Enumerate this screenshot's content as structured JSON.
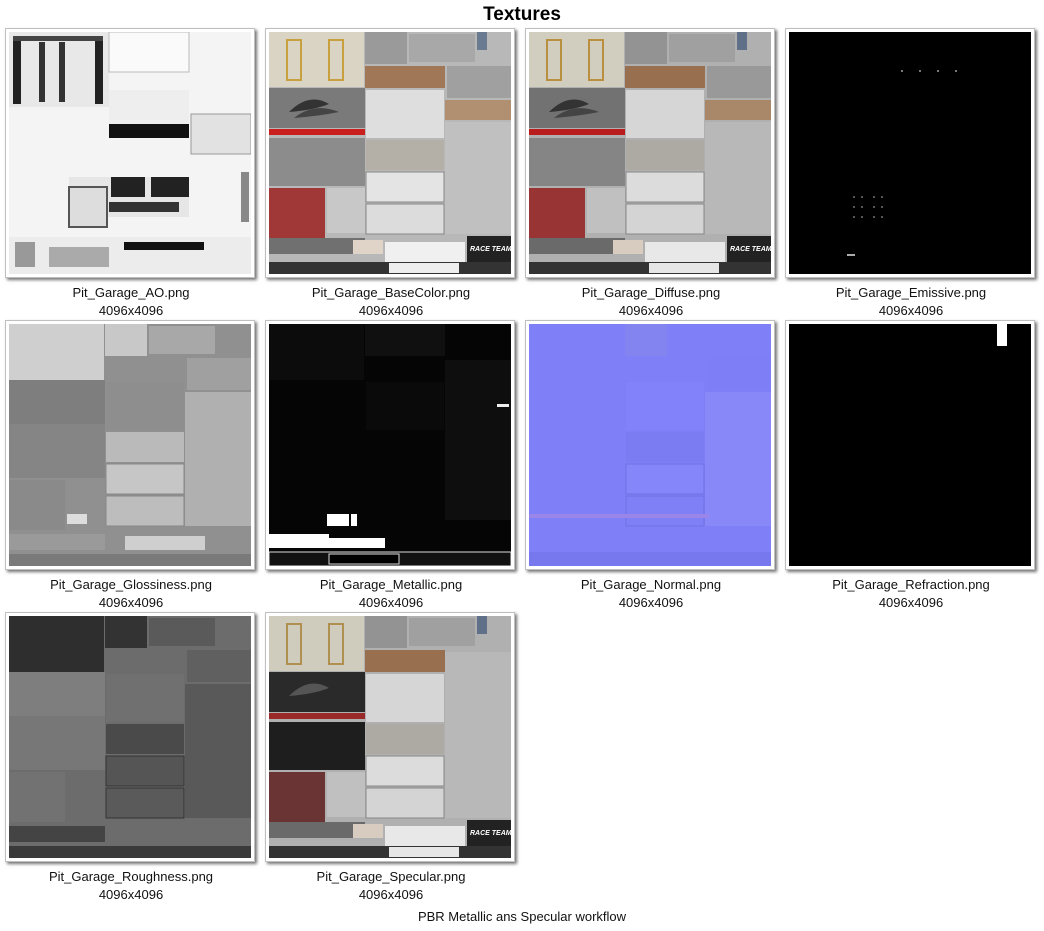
{
  "title": "Textures",
  "caption": "PBR Metallic ans Specular workflow",
  "textures": [
    {
      "name": "Pit_Garage_AO.png",
      "size": "4096x4096",
      "map": "ao-map"
    },
    {
      "name": "Pit_Garage_BaseColor.png",
      "size": "4096x4096",
      "map": "basecolor-map"
    },
    {
      "name": "Pit_Garage_Diffuse.png",
      "size": "4096x4096",
      "map": "diffuse-map"
    },
    {
      "name": "Pit_Garage_Emissive.png",
      "size": "4096x4096",
      "map": "emissive-map"
    },
    {
      "name": "Pit_Garage_Glossiness.png",
      "size": "4096x4096",
      "map": "glossiness-map"
    },
    {
      "name": "Pit_Garage_Metallic.png",
      "size": "4096x4096",
      "map": "metallic-map"
    },
    {
      "name": "Pit_Garage_Normal.png",
      "size": "4096x4096",
      "map": "normal-map"
    },
    {
      "name": "Pit_Garage_Refraction.png",
      "size": "4096x4096",
      "map": "refraction-map"
    },
    {
      "name": "Pit_Garage_Roughness.png",
      "size": "4096x4096",
      "map": "roughness-map"
    },
    {
      "name": "Pit_Garage_Specular.png",
      "size": "4096x4096",
      "map": "specular-map"
    }
  ]
}
